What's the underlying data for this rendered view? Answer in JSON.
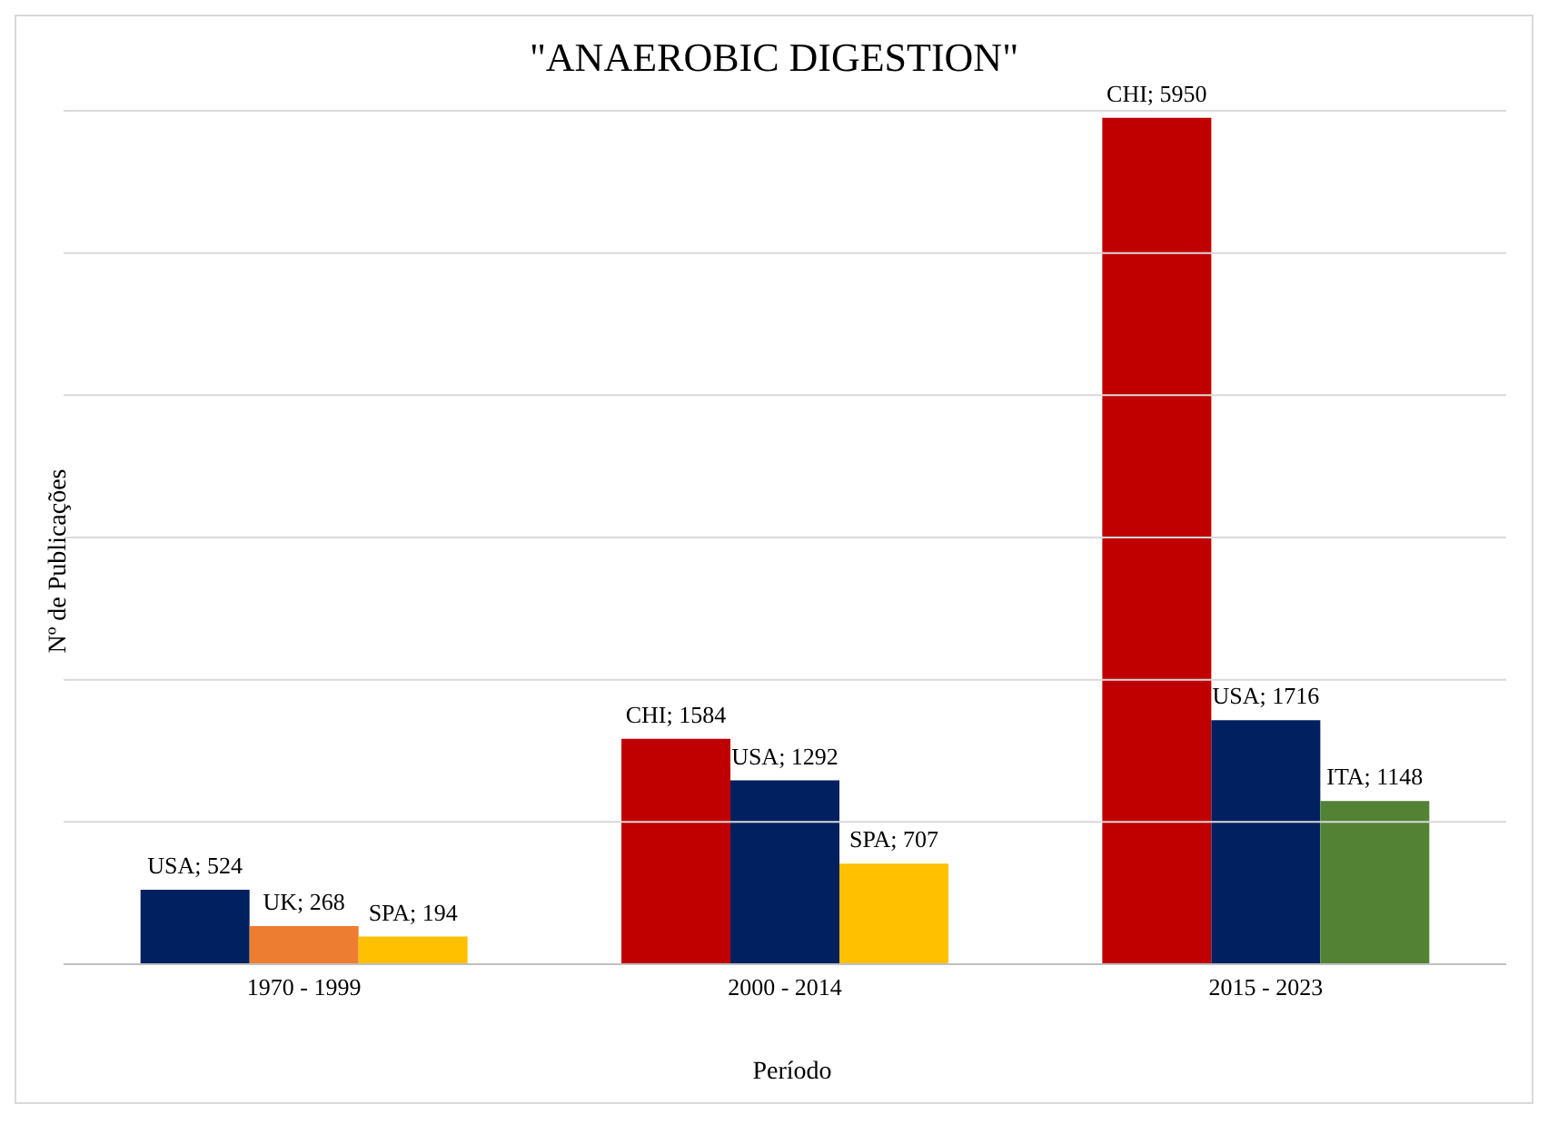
{
  "chart_data": {
    "type": "bar",
    "title": "\"ANAEROBIC DIGESTION\"",
    "xlabel": "Período",
    "ylabel": "Nº de Publicações",
    "categories": [
      "1970 - 1999",
      "2000 - 2014",
      "2015 - 2023"
    ],
    "series": [
      {
        "colors": [
          "#002060",
          "#c00000",
          "#c00000"
        ],
        "values": [
          524,
          1584,
          5950
        ],
        "value_labels": [
          "USA; 524",
          "CHI; 1584",
          "CHI; 5950"
        ]
      },
      {
        "colors": [
          "#ed7d31",
          "#002060",
          "#002060"
        ],
        "values": [
          268,
          1292,
          1716
        ],
        "value_labels": [
          "UK; 268",
          "USA; 1292",
          "USA; 1716"
        ]
      },
      {
        "colors": [
          "#ffc000",
          "#ffc000",
          "#548235"
        ],
        "values": [
          194,
          707,
          1148
        ],
        "value_labels": [
          "SPA; 194",
          "SPA; 707",
          "ITA; 1148"
        ]
      }
    ],
    "ylim": [
      0,
      6000
    ],
    "yticks": [
      {
        "value": 0,
        "label": null
      },
      {
        "value": 1000,
        "label": null
      },
      {
        "value": 2000,
        "label": null
      },
      {
        "value": 3000,
        "label": null
      },
      {
        "value": 4000,
        "label": null
      },
      {
        "value": 5000,
        "label": null
      },
      {
        "value": 6000,
        "label": null
      }
    ],
    "tick_labels": "x",
    "grid": "y",
    "legend": false
  }
}
